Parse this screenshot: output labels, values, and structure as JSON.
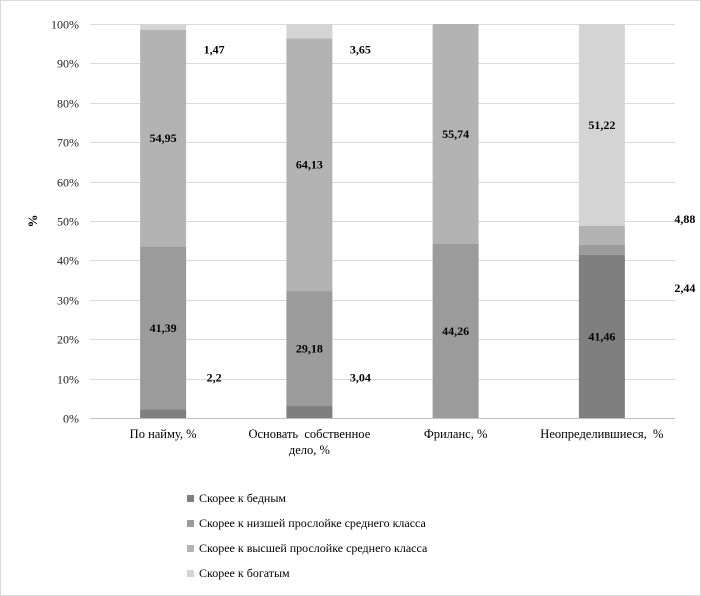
{
  "chart_data": {
    "type": "bar",
    "stacked": true,
    "ylabel": "%",
    "ylim": [
      0,
      100
    ],
    "yticks": [
      "0%",
      "10%",
      "20%",
      "30%",
      "40%",
      "50%",
      "60%",
      "70%",
      "80%",
      "90%",
      "100%"
    ],
    "grid": true,
    "legend_position": "bottom",
    "categories": [
      [
        "По найму, %"
      ],
      [
        "Основать  собственное",
        "дело, %"
      ],
      [
        "Фриланс, %"
      ],
      [
        "Неопределившиеся,  %"
      ]
    ],
    "series": [
      {
        "name": "Скорее к бедным",
        "color": "#7f7f7f",
        "values": [
          2.2,
          3.04,
          0,
          41.46
        ]
      },
      {
        "name": "Скорее к низшей прослойке среднего класса",
        "color": "#9b9b9b",
        "values": [
          41.39,
          29.18,
          44.26,
          2.44
        ]
      },
      {
        "name": "Скорее к высшей прослойке среднего класса",
        "color": "#b3b3b3",
        "values": [
          54.95,
          64.13,
          55.74,
          4.88
        ]
      },
      {
        "name": "Скорее к богатым",
        "color": "#d4d4d4",
        "values": [
          1.47,
          3.65,
          0,
          51.22
        ]
      }
    ],
    "data_labels": [
      {
        "text": "2,2",
        "series": 0,
        "category": 0,
        "side": "right"
      },
      {
        "text": "41,39",
        "series": 1,
        "category": 0,
        "side": "inside"
      },
      {
        "text": "54,95",
        "series": 2,
        "category": 0,
        "side": "inside"
      },
      {
        "text": "1,47",
        "series": 3,
        "category": 0,
        "side": "right"
      },
      {
        "text": "3,04",
        "series": 0,
        "category": 1,
        "side": "right"
      },
      {
        "text": "29,18",
        "series": 1,
        "category": 1,
        "side": "inside"
      },
      {
        "text": "64,13",
        "series": 2,
        "category": 1,
        "side": "inside"
      },
      {
        "text": "3,65",
        "series": 3,
        "category": 1,
        "side": "right"
      },
      {
        "text": "44,26",
        "series": 1,
        "category": 2,
        "side": "inside"
      },
      {
        "text": "55,74",
        "series": 2,
        "category": 2,
        "side": "inside"
      },
      {
        "text": "41,46",
        "series": 0,
        "category": 3,
        "side": "inside"
      },
      {
        "text": "2,44",
        "series": 1,
        "category": 3,
        "side": "right-low"
      },
      {
        "text": "4,88",
        "series": 2,
        "category": 3,
        "side": "right-high"
      },
      {
        "text": "51,22",
        "series": 3,
        "category": 3,
        "side": "inside"
      }
    ]
  }
}
